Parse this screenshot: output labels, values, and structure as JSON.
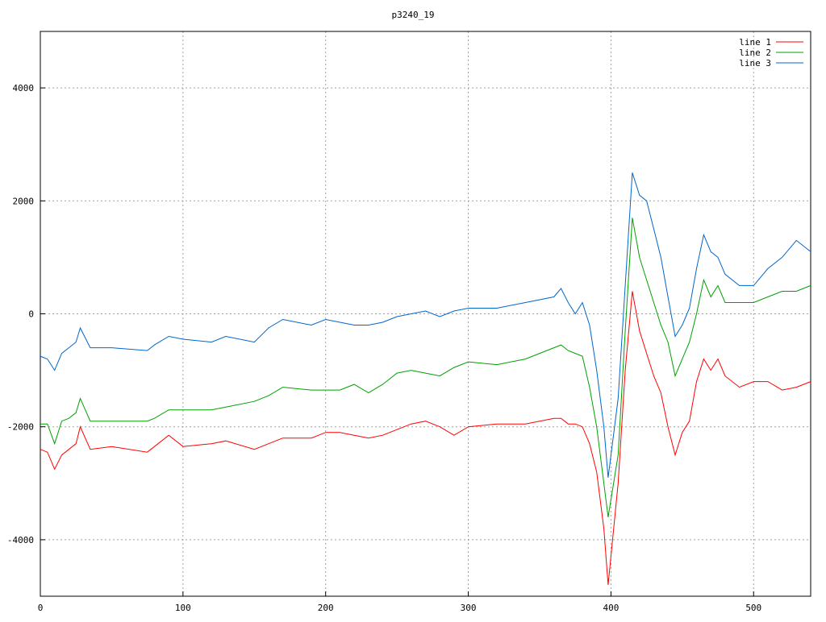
{
  "chart_data": {
    "type": "line",
    "title": "p3240_19",
    "x": [
      0,
      5,
      10,
      15,
      20,
      25,
      28,
      35,
      50,
      75,
      80,
      90,
      100,
      120,
      130,
      150,
      160,
      170,
      190,
      200,
      210,
      220,
      230,
      240,
      250,
      260,
      270,
      280,
      290,
      300,
      320,
      340,
      360,
      365,
      370,
      375,
      380,
      385,
      390,
      395,
      398,
      405,
      410,
      415,
      420,
      425,
      430,
      435,
      440,
      445,
      450,
      455,
      460,
      465,
      470,
      475,
      480,
      490,
      500,
      510,
      520,
      530,
      540
    ],
    "series": [
      {
        "name": "line 1",
        "color": "#ff0000",
        "values": [
          -2400,
          -2450,
          -2750,
          -2500,
          -2400,
          -2300,
          -2000,
          -2400,
          -2350,
          -2450,
          -2350,
          -2150,
          -2350,
          -2300,
          -2250,
          -2400,
          -2300,
          -2200,
          -2200,
          -2100,
          -2100,
          -2150,
          -2200,
          -2150,
          -2050,
          -1950,
          -1900,
          -2000,
          -2150,
          -2000,
          -1950,
          -1950,
          -1850,
          -1850,
          -1950,
          -1950,
          -2000,
          -2300,
          -2800,
          -3800,
          -4800,
          -3000,
          -1000,
          400,
          -300,
          -700,
          -1100,
          -1400,
          -2000,
          -2500,
          -2100,
          -1900,
          -1200,
          -800,
          -1000,
          -800,
          -1100,
          -1300,
          -1200,
          -1200,
          -1350,
          -1300,
          -1200
        ]
      },
      {
        "name": "line 2",
        "color": "#00a000",
        "values": [
          -1950,
          -1950,
          -2300,
          -1900,
          -1850,
          -1750,
          -1500,
          -1900,
          -1900,
          -1900,
          -1850,
          -1700,
          -1700,
          -1700,
          -1650,
          -1550,
          -1450,
          -1300,
          -1350,
          -1350,
          -1350,
          -1250,
          -1400,
          -1250,
          -1050,
          -1000,
          -1050,
          -1100,
          -950,
          -850,
          -900,
          -800,
          -600,
          -550,
          -650,
          -700,
          -750,
          -1300,
          -2000,
          -3000,
          -3600,
          -2500,
          -300,
          1700,
          1000,
          600,
          200,
          -200,
          -500,
          -1100,
          -800,
          -500,
          0,
          600,
          300,
          500,
          200,
          200,
          200,
          300,
          400,
          400,
          500
        ]
      },
      {
        "name": "line 3",
        "color": "#0066cc",
        "values": [
          -750,
          -800,
          -1000,
          -700,
          -600,
          -500,
          -250,
          -600,
          -600,
          -650,
          -550,
          -400,
          -450,
          -500,
          -400,
          -500,
          -250,
          -100,
          -200,
          -100,
          -150,
          -200,
          -200,
          -150,
          -50,
          0,
          50,
          -50,
          50,
          100,
          100,
          200,
          300,
          450,
          200,
          0,
          200,
          -200,
          -1000,
          -2000,
          -2900,
          -1500,
          500,
          2500,
          2100,
          2000,
          1500,
          1000,
          300,
          -400,
          -200,
          100,
          800,
          1400,
          1100,
          1000,
          700,
          500,
          500,
          800,
          1000,
          1300,
          1100
        ]
      }
    ],
    "xlim": [
      0,
      540
    ],
    "ylim": [
      -5000,
      5000
    ],
    "xticks": [
      0,
      100,
      200,
      300,
      400,
      500
    ],
    "yticks": [
      -4000,
      -2000,
      0,
      2000,
      4000
    ],
    "grid": true,
    "legend": "top-right"
  }
}
